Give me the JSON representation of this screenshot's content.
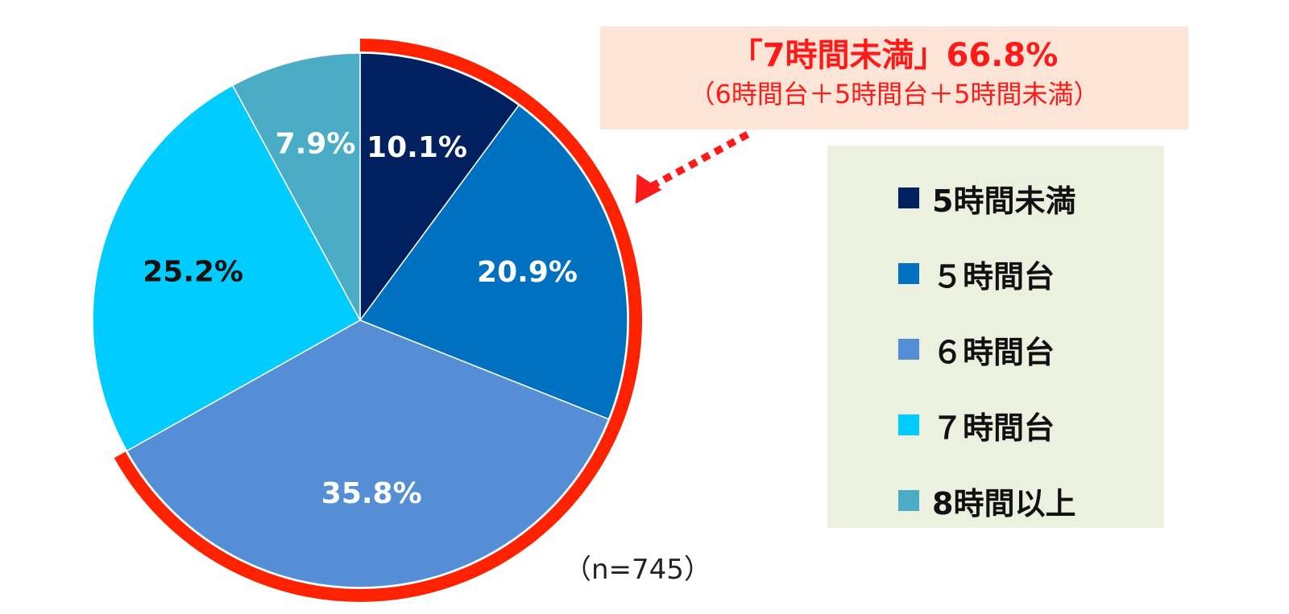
{
  "chart_data": {
    "type": "pie",
    "title": "",
    "slices": [
      {
        "name": "5時間未満",
        "value": 10.1,
        "label": "10.1%",
        "color": "#002060",
        "label_color": "#ffffff"
      },
      {
        "name": "５時間台",
        "value": 20.9,
        "label": "20.9%",
        "color": "#0070c0",
        "label_color": "#ffffff"
      },
      {
        "name": "６時間台",
        "value": 35.8,
        "label": "35.8%",
        "color": "#558ed5",
        "label_color": "#ffffff"
      },
      {
        "name": "７時間台",
        "value": 25.2,
        "label": "25.2%",
        "color": "#00ccff",
        "label_color": "#111111"
      },
      {
        "name": "8時間以上",
        "value": 7.9,
        "label": "7.9%",
        "color": "#4bacc6",
        "label_color": "#ffffff"
      }
    ],
    "legend": {
      "placement": "right"
    },
    "highlight": {
      "color": "#ff2200",
      "slices": [
        "5時間未満",
        "５時間台",
        "６時間台"
      ]
    },
    "annotation": {
      "main": "「7時間未満」66.8%",
      "sub": "（6時間台＋5時間台＋5時間未満）",
      "arrow_color": "#ff1a1a"
    },
    "sample_size": "（n=745）"
  }
}
